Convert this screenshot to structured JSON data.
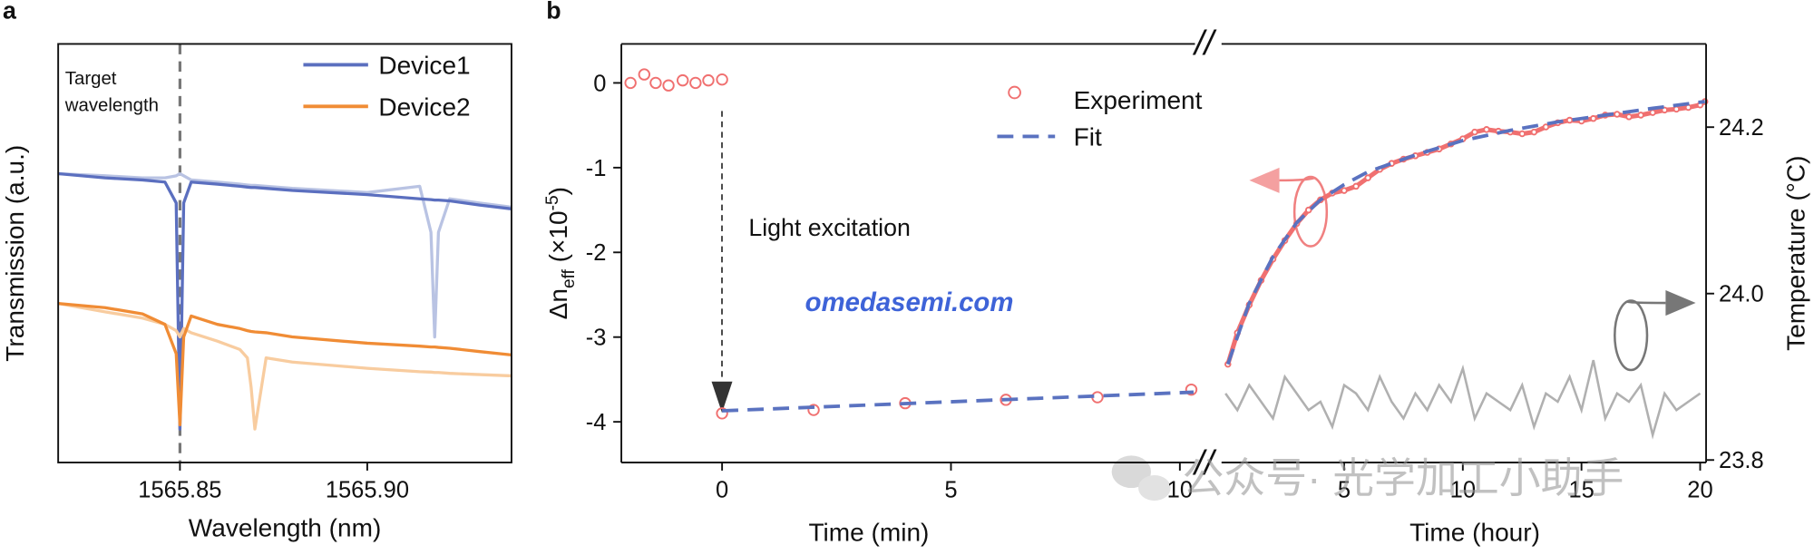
{
  "chart_data": [
    {
      "type": "line",
      "panel_label": "a",
      "x_label": "Wavelength (nm)",
      "y_label": "Transmission (a.u.)",
      "x": [
        1565.8175,
        1565.83,
        1565.84,
        1565.846,
        1565.849,
        1565.85,
        1565.851,
        1565.853,
        1565.86,
        1565.866,
        1565.868,
        1565.869,
        1565.87,
        1565.873,
        1565.88,
        1565.9,
        1565.914,
        1565.917,
        1565.918,
        1565.919,
        1565.922,
        1565.93,
        1565.9385
      ],
      "xlim": [
        1565.8175,
        1565.9385
      ],
      "xticks": [
        1565.85,
        {
          "value": 1565.9,
          "label": "1565.90"
        }
      ],
      "ylim": [
        0,
        1
      ],
      "series": [
        {
          "color": "#b9c3e3",
          "values": [
            0.69,
            0.685,
            0.68,
            0.68,
            0.685,
            0.69,
            0.685,
            0.675,
            0.67,
            0.665,
            0.663,
            0.662,
            0.662,
            0.66,
            0.655,
            0.645,
            0.66,
            0.55,
            0.3,
            0.55,
            0.63,
            0.62,
            0.61
          ]
        },
        {
          "name": "Device1",
          "color": "#5b6fbf",
          "values": [
            0.69,
            0.68,
            0.675,
            0.67,
            0.62,
            0.08,
            0.62,
            0.67,
            0.665,
            0.66,
            0.658,
            0.657,
            0.657,
            0.655,
            0.65,
            0.64,
            0.63,
            0.628,
            0.627,
            0.627,
            0.625,
            0.615,
            0.606
          ]
        },
        {
          "color": "#f8cc9f",
          "values": [
            0.38,
            0.36,
            0.345,
            0.33,
            0.315,
            0.3,
            0.32,
            0.31,
            0.29,
            0.27,
            0.25,
            0.18,
            0.08,
            0.25,
            0.24,
            0.225,
            0.217,
            0.216,
            0.215,
            0.215,
            0.213,
            0.21,
            0.207
          ]
        },
        {
          "name": "Device2",
          "color": "#f08c35",
          "values": [
            0.38,
            0.37,
            0.355,
            0.33,
            0.26,
            0.09,
            0.3,
            0.35,
            0.33,
            0.32,
            0.315,
            0.313,
            0.312,
            0.31,
            0.3,
            0.285,
            0.278,
            0.276,
            0.276,
            0.275,
            0.273,
            0.265,
            0.257
          ]
        }
      ],
      "reference_line": 1565.85,
      "annotation": [
        "Target",
        "wavelength"
      ]
    },
    {
      "type": "scatter",
      "panel_label": "b",
      "y_label": [
        "Δn",
        "eff",
        " (×10",
        "-5",
        ")"
      ],
      "y2_label": "Temperature (°C)",
      "ylim": [
        -4.48,
        0.46
      ],
      "yticks": [
        0,
        -1,
        -2,
        -3,
        -4
      ],
      "y2lim": [
        23.797,
        24.3
      ],
      "y2ticks": [
        23.8,
        {
          "value": 24,
          "label": "24.0"
        },
        24.2
      ],
      "experiment_name": "Experiment",
      "experiment_color": "#f07070",
      "fit_name": "Fit",
      "fit_color": "#5a72c0",
      "temperature_color": "#b0b0b0",
      "annotation": "Light excitation",
      "break_mark": "//",
      "watermarks": [
        "omedasemi.com",
        "公众号· 光学加工小助手"
      ],
      "segments": [
        {
          "x_label": "Time (min)",
          "xlim": [
            -2.2,
            10.38
          ],
          "xticks": [
            0,
            5,
            10
          ],
          "experiment": {
            "x": [
              -2.0,
              -1.7,
              -1.45,
              -1.17,
              -0.86,
              -0.58,
              -0.3,
              0,
              0,
              2,
              4,
              6.2,
              8.2,
              10.25
            ],
            "values": [
              0,
              0.1,
              0,
              -0.03,
              0.03,
              0,
              0.03,
              0.04,
              -3.9,
              -3.86,
              -3.78,
              -3.74,
              -3.71,
              -3.62
            ]
          },
          "fit": {
            "x": [
              0,
              10.3
            ],
            "values": [
              -3.87,
              -3.65
            ]
          }
        },
        {
          "x_label": "Time (hour)",
          "xlim": [
            -1.19,
            20.25
          ],
          "xticks": [
            5,
            10,
            15,
            20
          ],
          "experiment": {
            "x": [
              0.1,
              0.5,
              1,
              1.5,
              2,
              2.5,
              3,
              3.5,
              4,
              4.5,
              5,
              5.5,
              6,
              6.5,
              7,
              7.5,
              8,
              8.5,
              9,
              9.5,
              10,
              10.5,
              11,
              11.5,
              12,
              12.5,
              13,
              13.5,
              14,
              14.5,
              15,
              15.5,
              16,
              16.5,
              17,
              17.5,
              18,
              18.5,
              19,
              19.5,
              20,
              20.2
            ],
            "values": [
              -3.32,
              -2.95,
              -2.62,
              -2.33,
              -2.08,
              -1.86,
              -1.66,
              -1.5,
              -1.38,
              -1.3,
              -1.27,
              -1.22,
              -1.12,
              -1.02,
              -0.95,
              -0.9,
              -0.86,
              -0.82,
              -0.78,
              -0.72,
              -0.66,
              -0.58,
              -0.55,
              -0.57,
              -0.58,
              -0.6,
              -0.58,
              -0.52,
              -0.47,
              -0.44,
              -0.45,
              -0.42,
              -0.38,
              -0.37,
              -0.4,
              -0.38,
              -0.35,
              -0.32,
              -0.31,
              -0.29,
              -0.26,
              -0.22
            ]
          },
          "fit": {
            "x": [
              0.1,
              1,
              2,
              3,
              4,
              5,
              6,
              8,
              10,
              12,
              14,
              16,
              18,
              20.2
            ],
            "values": [
              -3.32,
              -2.6,
              -2.05,
              -1.65,
              -1.38,
              -1.2,
              -1.05,
              -0.85,
              -0.68,
              -0.56,
              -0.46,
              -0.38,
              -0.3,
              -0.22
            ]
          },
          "temperature": {
            "axis": "y2",
            "x": [
              0,
              0.5,
              1,
              1.5,
              2,
              2.5,
              3,
              3.5,
              4,
              4.5,
              5,
              5.5,
              6,
              6.5,
              7,
              7.5,
              8,
              8.5,
              9,
              9.5,
              10,
              10.5,
              11,
              11.5,
              12,
              12.5,
              13,
              13.5,
              14,
              14.5,
              15,
              15.5,
              16,
              16.5,
              17,
              17.5,
              18,
              18.5,
              19,
              19.5,
              20
            ],
            "values": [
              23.88,
              23.86,
              23.89,
              23.87,
              23.85,
              23.9,
              23.88,
              23.86,
              23.87,
              23.84,
              23.89,
              23.88,
              23.86,
              23.9,
              23.87,
              23.85,
              23.88,
              23.86,
              23.89,
              23.87,
              23.91,
              23.85,
              23.88,
              23.87,
              23.86,
              23.89,
              23.84,
              23.88,
              23.87,
              23.9,
              23.86,
              23.92,
              23.85,
              23.88,
              23.87,
              23.89,
              23.83,
              23.88,
              23.86,
              23.87,
              23.88
            ]
          }
        }
      ]
    }
  ]
}
